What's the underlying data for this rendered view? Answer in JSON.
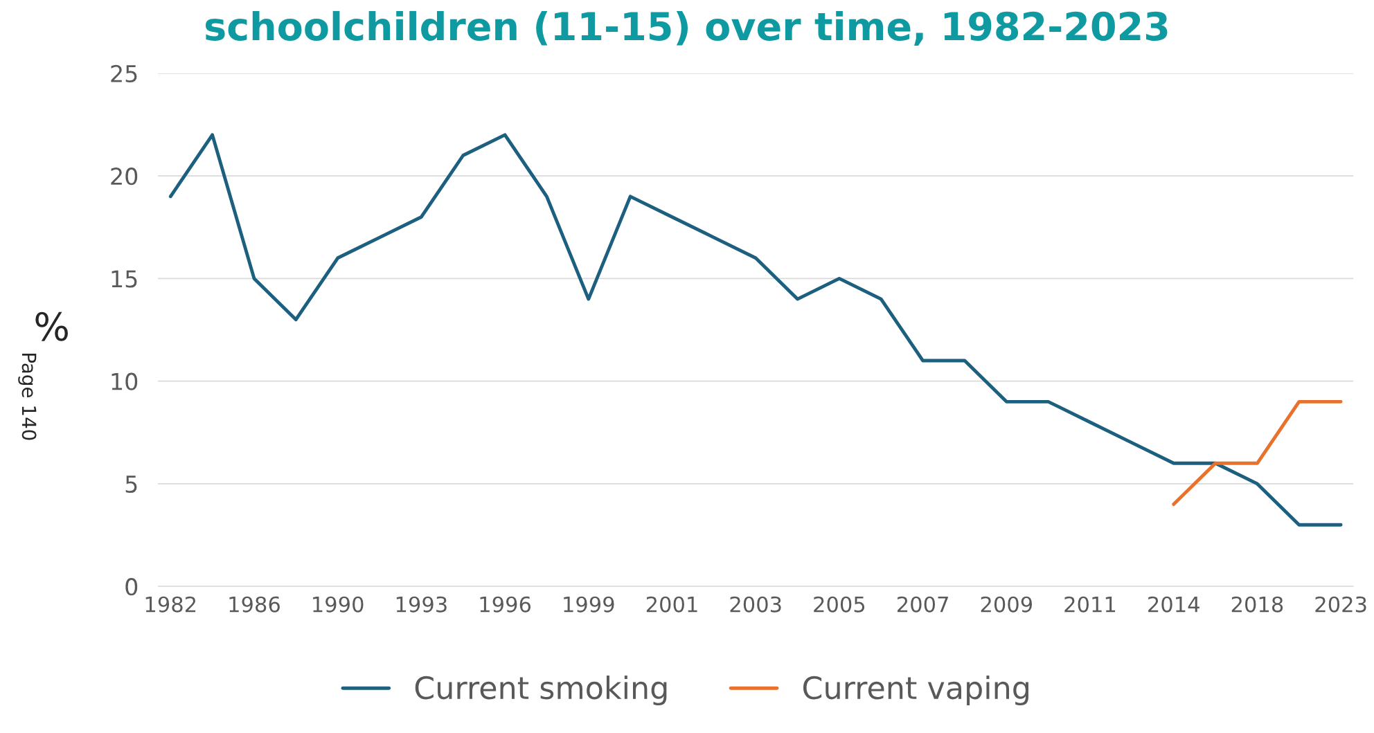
{
  "chart_data": {
    "type": "line",
    "title": "schoolchildren (11-15) over time, 1982-2023",
    "ylabel": "%",
    "categories": [
      "1982",
      null,
      "1986",
      null,
      "1990",
      null,
      "1993",
      null,
      "1996",
      null,
      "1999",
      null,
      "2001",
      null,
      "2003",
      null,
      "2005",
      null,
      "2007",
      null,
      "2009",
      null,
      "2011",
      null,
      "2014",
      null,
      "2018",
      null,
      "2023"
    ],
    "series": [
      {
        "name": "Current smoking",
        "color": "#1c5f7f",
        "values": [
          19,
          22,
          15,
          13,
          16,
          17,
          18,
          21,
          22,
          19,
          14,
          19,
          18,
          17,
          16,
          14,
          15,
          14,
          11,
          11,
          9,
          9,
          8,
          7,
          6,
          6,
          5,
          3,
          3
        ]
      },
      {
        "name": "Current vaping",
        "color": "#e8712b",
        "values": [
          null,
          null,
          null,
          null,
          null,
          null,
          null,
          null,
          null,
          null,
          null,
          null,
          null,
          null,
          null,
          null,
          null,
          null,
          null,
          null,
          null,
          null,
          null,
          null,
          4,
          6,
          6,
          9,
          9
        ]
      }
    ],
    "ylim": [
      0,
      25
    ],
    "yticks": [
      0,
      5,
      10,
      15,
      20,
      25
    ],
    "grid": "y",
    "legend": "bottom",
    "marker": "none",
    "line_style": "solid",
    "annotations": [
      "Page 140"
    ]
  }
}
